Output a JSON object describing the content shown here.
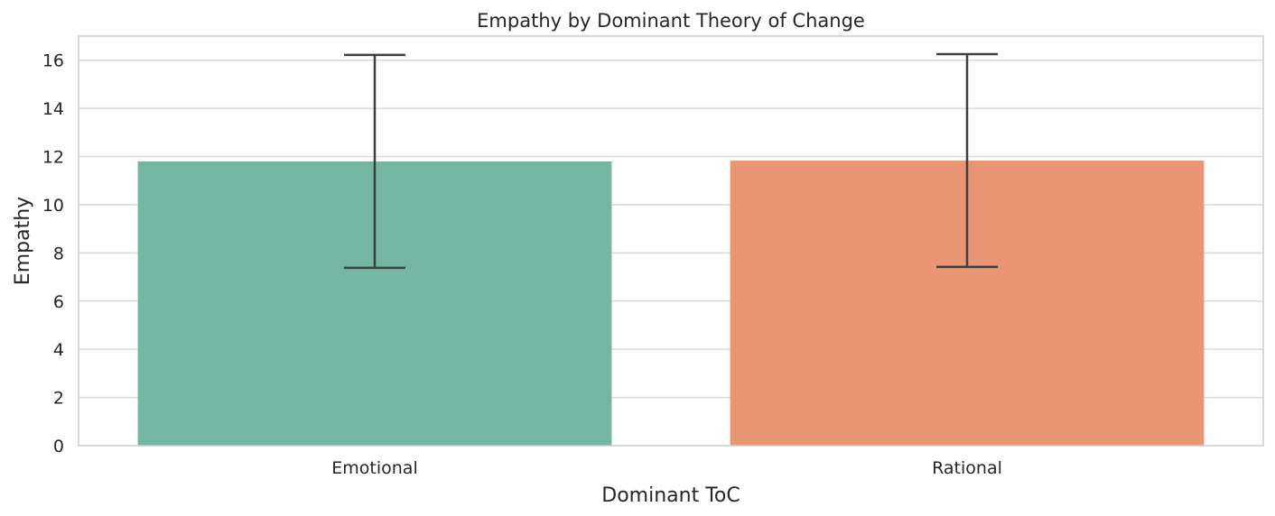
{
  "chart_data": {
    "type": "bar",
    "title": "Empathy by Dominant Theory of Change",
    "xlabel": "Dominant ToC",
    "ylabel": "Empathy",
    "categories": [
      "Emotional",
      "Rational"
    ],
    "values": [
      11.8,
      11.83
    ],
    "error_bars": [
      {
        "low": 7.38,
        "high": 16.22
      },
      {
        "low": 7.42,
        "high": 16.25
      }
    ],
    "ylim": [
      0,
      17
    ],
    "yticks": [
      0,
      2,
      4,
      6,
      8,
      10,
      12,
      14,
      16
    ],
    "grid": "horizontal",
    "legend": "none",
    "colors": {
      "bars": [
        "#74b6a1",
        "#e89673"
      ],
      "error_bar": "#3f3f3f",
      "grid": "#d9d9d9",
      "frame": "#cccccc",
      "text": "#262626"
    }
  }
}
